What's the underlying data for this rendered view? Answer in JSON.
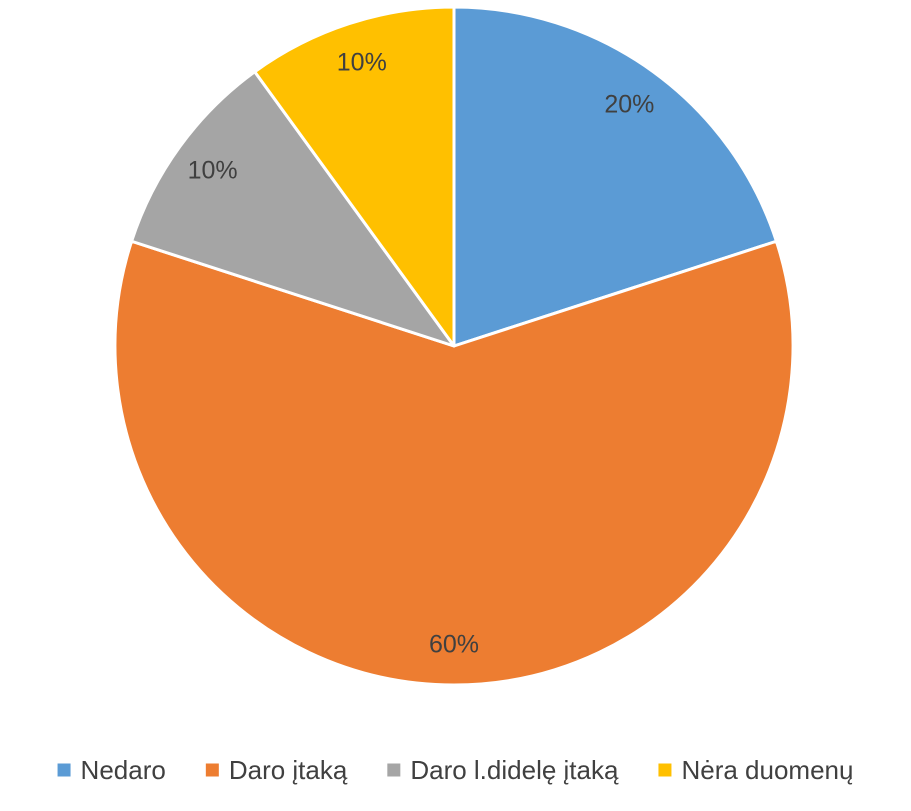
{
  "chart_data": {
    "type": "pie",
    "title": "",
    "start_angle_deg": 0,
    "direction": "clockwise",
    "legend_position": "bottom",
    "slices": [
      {
        "label": "Nedaro",
        "value": 20,
        "display": "20%",
        "color": "#5B9BD5"
      },
      {
        "label": "Daro įtaką",
        "value": 60,
        "display": "60%",
        "color": "#ED7D31"
      },
      {
        "label": "Daro l.didelę įtaką",
        "value": 10,
        "display": "10%",
        "color": "#A5A5A5"
      },
      {
        "label": "Nėra duomenų",
        "value": 10,
        "display": "10%",
        "color": "#FFC000"
      }
    ]
  }
}
